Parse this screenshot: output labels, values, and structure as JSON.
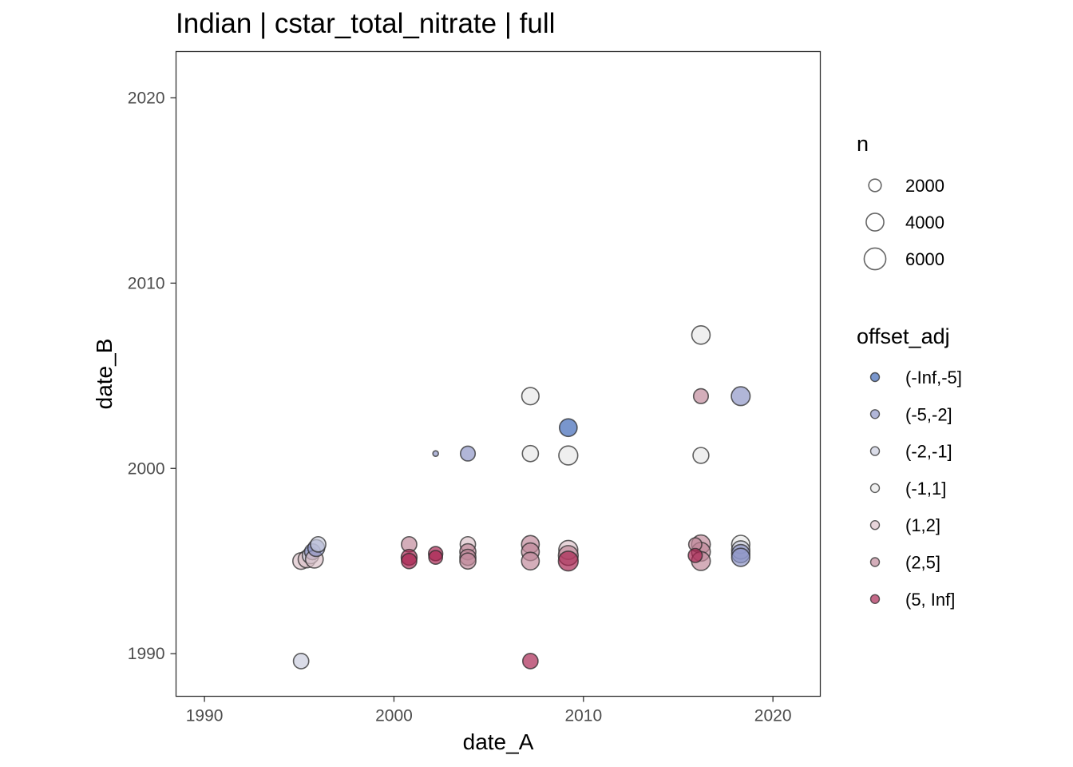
{
  "chart_data": {
    "type": "scatter",
    "title": "Indian | cstar_total_nitrate | full",
    "xlabel": "date_A",
    "ylabel": "date_B",
    "xlim": [
      1988.5,
      2022.5
    ],
    "ylim": [
      1987.7,
      2022.5
    ],
    "x_ticks": [
      1990,
      2000,
      2010,
      2020
    ],
    "y_ticks": [
      1990,
      2000,
      2010,
      2020
    ],
    "grid": false,
    "size_legend": {
      "title": "n",
      "entries": [
        {
          "label": "2000",
          "value": 2000
        },
        {
          "label": "4000",
          "value": 4000
        },
        {
          "label": "6000",
          "value": 6000
        }
      ]
    },
    "color_legend": {
      "title": "offset_adj",
      "entries": [
        {
          "label": "(-Inf,-5]",
          "color": "#3a64b5"
        },
        {
          "label": "(-5,-2]",
          "color": "#8c94c6"
        },
        {
          "label": "(-2,-1]",
          "color": "#c9cbdd"
        },
        {
          "label": "(-1,1]",
          "color": "#e8e8e8"
        },
        {
          "label": "(1,2]",
          "color": "#dcc1c8"
        },
        {
          "label": "(2,5]",
          "color": "#c0889a"
        },
        {
          "label": "(5, Inf]",
          "color": "#a8224f"
        }
      ]
    },
    "points": [
      {
        "x": 1995.1,
        "y": 1989.6,
        "n": 3000,
        "cls": "(-2,-1]"
      },
      {
        "x": 1995.1,
        "y": 1995.0,
        "n": 3500,
        "cls": "(1,2]"
      },
      {
        "x": 1995.4,
        "y": 1995.1,
        "n": 3800,
        "cls": "(1,2]"
      },
      {
        "x": 1995.6,
        "y": 1995.3,
        "n": 3500,
        "cls": "(-2,-1]"
      },
      {
        "x": 1995.7,
        "y": 1995.5,
        "n": 3200,
        "cls": "(-5,-2]"
      },
      {
        "x": 1995.8,
        "y": 1995.1,
        "n": 4000,
        "cls": "(1,2]"
      },
      {
        "x": 1995.9,
        "y": 1995.7,
        "n": 3600,
        "cls": "(-5,-2]"
      },
      {
        "x": 1996.0,
        "y": 1995.9,
        "n": 3000,
        "cls": "(-2,-1]"
      },
      {
        "x": 2000.8,
        "y": 1995.9,
        "n": 3000,
        "cls": "(2,5]"
      },
      {
        "x": 2000.8,
        "y": 1995.2,
        "n": 3200,
        "cls": "(5, Inf]"
      },
      {
        "x": 2000.8,
        "y": 1995.0,
        "n": 3000,
        "cls": "(5, Inf]"
      },
      {
        "x": 2002.2,
        "y": 2000.8,
        "n": 400,
        "cls": "(-5,-2]"
      },
      {
        "x": 2002.2,
        "y": 1995.4,
        "n": 2600,
        "cls": "(5, Inf]"
      },
      {
        "x": 2002.2,
        "y": 1995.2,
        "n": 2400,
        "cls": "(5, Inf]"
      },
      {
        "x": 2003.9,
        "y": 2000.8,
        "n": 2800,
        "cls": "(-5,-2]"
      },
      {
        "x": 2003.9,
        "y": 1995.9,
        "n": 3000,
        "cls": "(1,2]"
      },
      {
        "x": 2003.9,
        "y": 1995.5,
        "n": 3300,
        "cls": "(2,5]"
      },
      {
        "x": 2003.9,
        "y": 1995.2,
        "n": 3300,
        "cls": "(2,5]"
      },
      {
        "x": 2003.9,
        "y": 1995.0,
        "n": 3300,
        "cls": "(2,5]"
      },
      {
        "x": 2007.2,
        "y": 2003.9,
        "n": 3800,
        "cls": "(-1,1]"
      },
      {
        "x": 2007.2,
        "y": 2000.8,
        "n": 3300,
        "cls": "(-1,1]"
      },
      {
        "x": 2007.2,
        "y": 1995.9,
        "n": 4000,
        "cls": "(2,5]"
      },
      {
        "x": 2007.2,
        "y": 1995.5,
        "n": 4000,
        "cls": "(2,5]"
      },
      {
        "x": 2007.2,
        "y": 1995.0,
        "n": 4000,
        "cls": "(2,5]"
      },
      {
        "x": 2007.2,
        "y": 1989.6,
        "n": 3000,
        "cls": "(5, Inf]"
      },
      {
        "x": 2009.2,
        "y": 2002.2,
        "n": 4000,
        "cls": "(-Inf,-5]"
      },
      {
        "x": 2009.2,
        "y": 2000.7,
        "n": 4600,
        "cls": "(-1,1]"
      },
      {
        "x": 2009.2,
        "y": 1995.6,
        "n": 4600,
        "cls": "(1,2]"
      },
      {
        "x": 2009.2,
        "y": 1995.3,
        "n": 5000,
        "cls": "(2,5]"
      },
      {
        "x": 2009.2,
        "y": 1995.0,
        "n": 5000,
        "cls": "(5, Inf]"
      },
      {
        "x": 2016.2,
        "y": 2007.2,
        "n": 4300,
        "cls": "(-1,1]"
      },
      {
        "x": 2016.2,
        "y": 2003.9,
        "n": 2800,
        "cls": "(2,5]"
      },
      {
        "x": 2016.2,
        "y": 2000.7,
        "n": 3200,
        "cls": "(-1,1]"
      },
      {
        "x": 2016.2,
        "y": 1995.9,
        "n": 4500,
        "cls": "(2,5]"
      },
      {
        "x": 2016.2,
        "y": 1995.5,
        "n": 4500,
        "cls": "(2,5]"
      },
      {
        "x": 2016.2,
        "y": 1995.0,
        "n": 4500,
        "cls": "(2,5]"
      },
      {
        "x": 2015.9,
        "y": 1995.9,
        "n": 2200,
        "cls": "(2,5]"
      },
      {
        "x": 2015.9,
        "y": 1995.3,
        "n": 2500,
        "cls": "(5, Inf]"
      },
      {
        "x": 2018.3,
        "y": 2003.9,
        "n": 4500,
        "cls": "(-5,-2]"
      },
      {
        "x": 2018.3,
        "y": 1995.9,
        "n": 4200,
        "cls": "(-1,1]"
      },
      {
        "x": 2018.3,
        "y": 1995.6,
        "n": 4200,
        "cls": "(-2,-1]"
      },
      {
        "x": 2018.3,
        "y": 1995.4,
        "n": 4200,
        "cls": "(-5,-2]"
      },
      {
        "x": 2018.3,
        "y": 1995.2,
        "n": 4200,
        "cls": "(-5,-2]"
      }
    ]
  }
}
